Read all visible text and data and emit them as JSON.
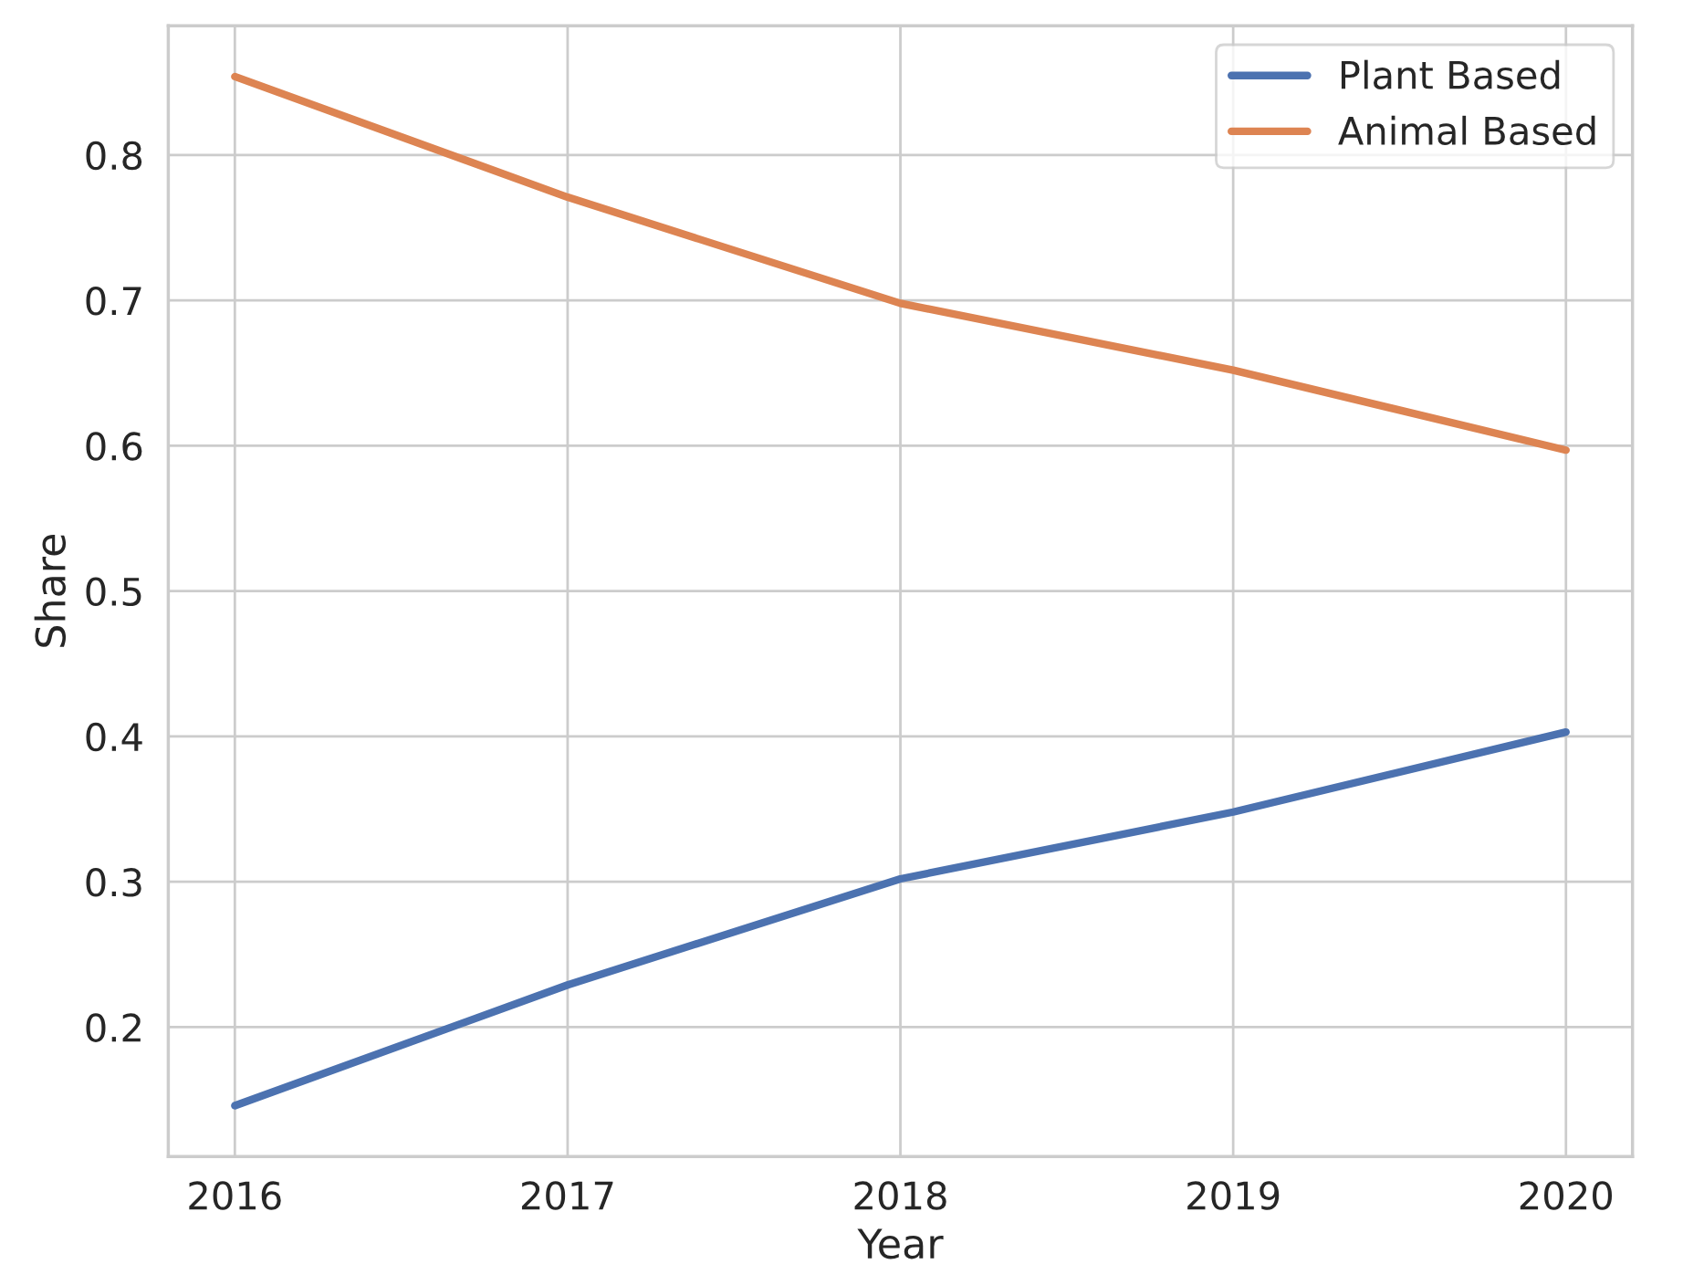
{
  "chart_data": {
    "type": "line",
    "xlabel": "Year",
    "ylabel": "Share",
    "x": [
      2016,
      2017,
      2018,
      2019,
      2020
    ],
    "series": [
      {
        "name": "Plant Based",
        "color": "#4c72b0",
        "values": [
          0.146,
          0.229,
          0.302,
          0.348,
          0.403
        ]
      },
      {
        "name": "Animal Based",
        "color": "#dd8452",
        "values": [
          0.854,
          0.771,
          0.698,
          0.652,
          0.597
        ]
      }
    ],
    "xlim": [
      2015.8,
      2020.2
    ],
    "xticks": [
      2016,
      2017,
      2018,
      2019,
      2020
    ],
    "ylim": [
      0.111,
      0.889
    ],
    "yticks": [
      0.2,
      0.3,
      0.4,
      0.5,
      0.6,
      0.7,
      0.8
    ],
    "grid": true,
    "legend": "top right",
    "marker": "none",
    "line_style": "solid"
  }
}
